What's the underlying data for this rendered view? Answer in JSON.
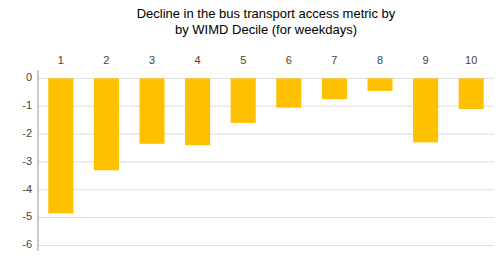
{
  "chart_data": {
    "type": "bar",
    "title": "Decline in the bus transport access metric by\nby WIMD Decile (for weekdays)",
    "categories": [
      1,
      2,
      3,
      4,
      5,
      6,
      7,
      8,
      9,
      10
    ],
    "values": [
      -4.85,
      -3.3,
      -2.35,
      -2.4,
      -1.6,
      -1.05,
      -0.75,
      -0.45,
      -2.3,
      -1.1
    ],
    "color": "#FFC000",
    "ylim": [
      -6.2,
      0.3
    ],
    "yticks": [
      0,
      -1,
      -2,
      -3,
      -4,
      -5,
      -6
    ],
    "grid": true
  }
}
